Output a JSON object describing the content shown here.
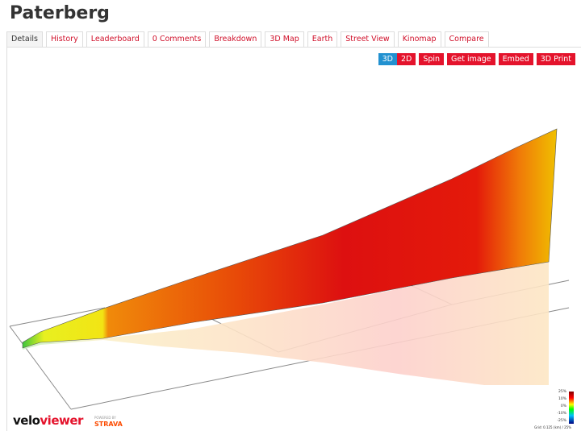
{
  "header": {
    "title": "Paterberg"
  },
  "tabs": [
    "Details",
    "History",
    "Leaderboard",
    "0 Comments",
    "Breakdown",
    "3D Map",
    "Earth",
    "Street View",
    "Kinomap",
    "Compare"
  ],
  "toolbar": [
    "3D",
    "2D",
    "Spin",
    "Get image",
    "Embed",
    "3D Print"
  ],
  "logo": {
    "velo": "velo",
    "viewer": "viewer",
    "powered_by": "POWERED BY",
    "strava": "STRAVA"
  },
  "legend": {
    "labels": [
      "25%",
      "10%",
      "0%",
      "-10%",
      "-25%"
    ],
    "note": "Grid: 0.125 (km) / 25%"
  }
}
